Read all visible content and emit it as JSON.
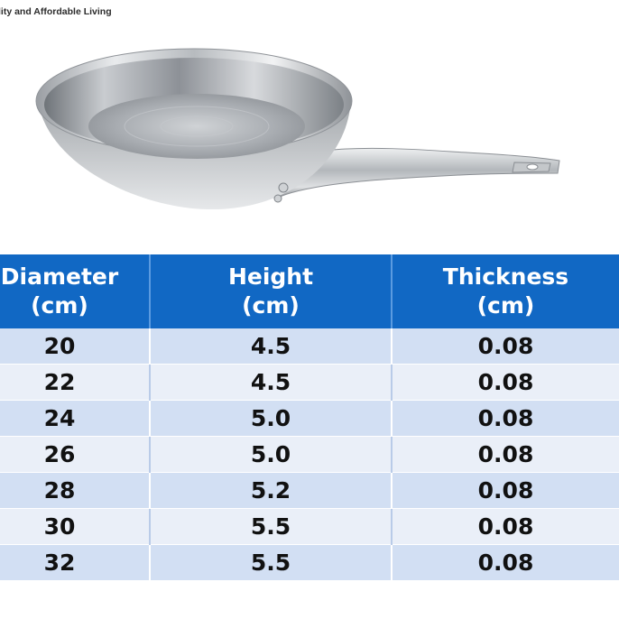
{
  "brand": {
    "tagline": "lity and Affordable Living"
  },
  "table": {
    "headers": [
      {
        "line1": "Diameter",
        "line2": "(cm)"
      },
      {
        "line1": "Height",
        "line2": "(cm)"
      },
      {
        "line1": "Thickness",
        "line2": "(cm)"
      }
    ],
    "rows": [
      [
        "20",
        "4.5",
        "0.08"
      ],
      [
        "22",
        "4.5",
        "0.08"
      ],
      [
        "24",
        "5.0",
        "0.08"
      ],
      [
        "26",
        "5.0",
        "0.08"
      ],
      [
        "28",
        "5.2",
        "0.08"
      ],
      [
        "30",
        "5.5",
        "0.08"
      ],
      [
        "32",
        "5.5",
        "0.08"
      ]
    ]
  },
  "colors": {
    "header_bg": "#1168c4",
    "row_odd": "#d2dff3",
    "row_even": "#eaeff8"
  },
  "image": {
    "subject": "stainless-steel-frying-pan"
  }
}
